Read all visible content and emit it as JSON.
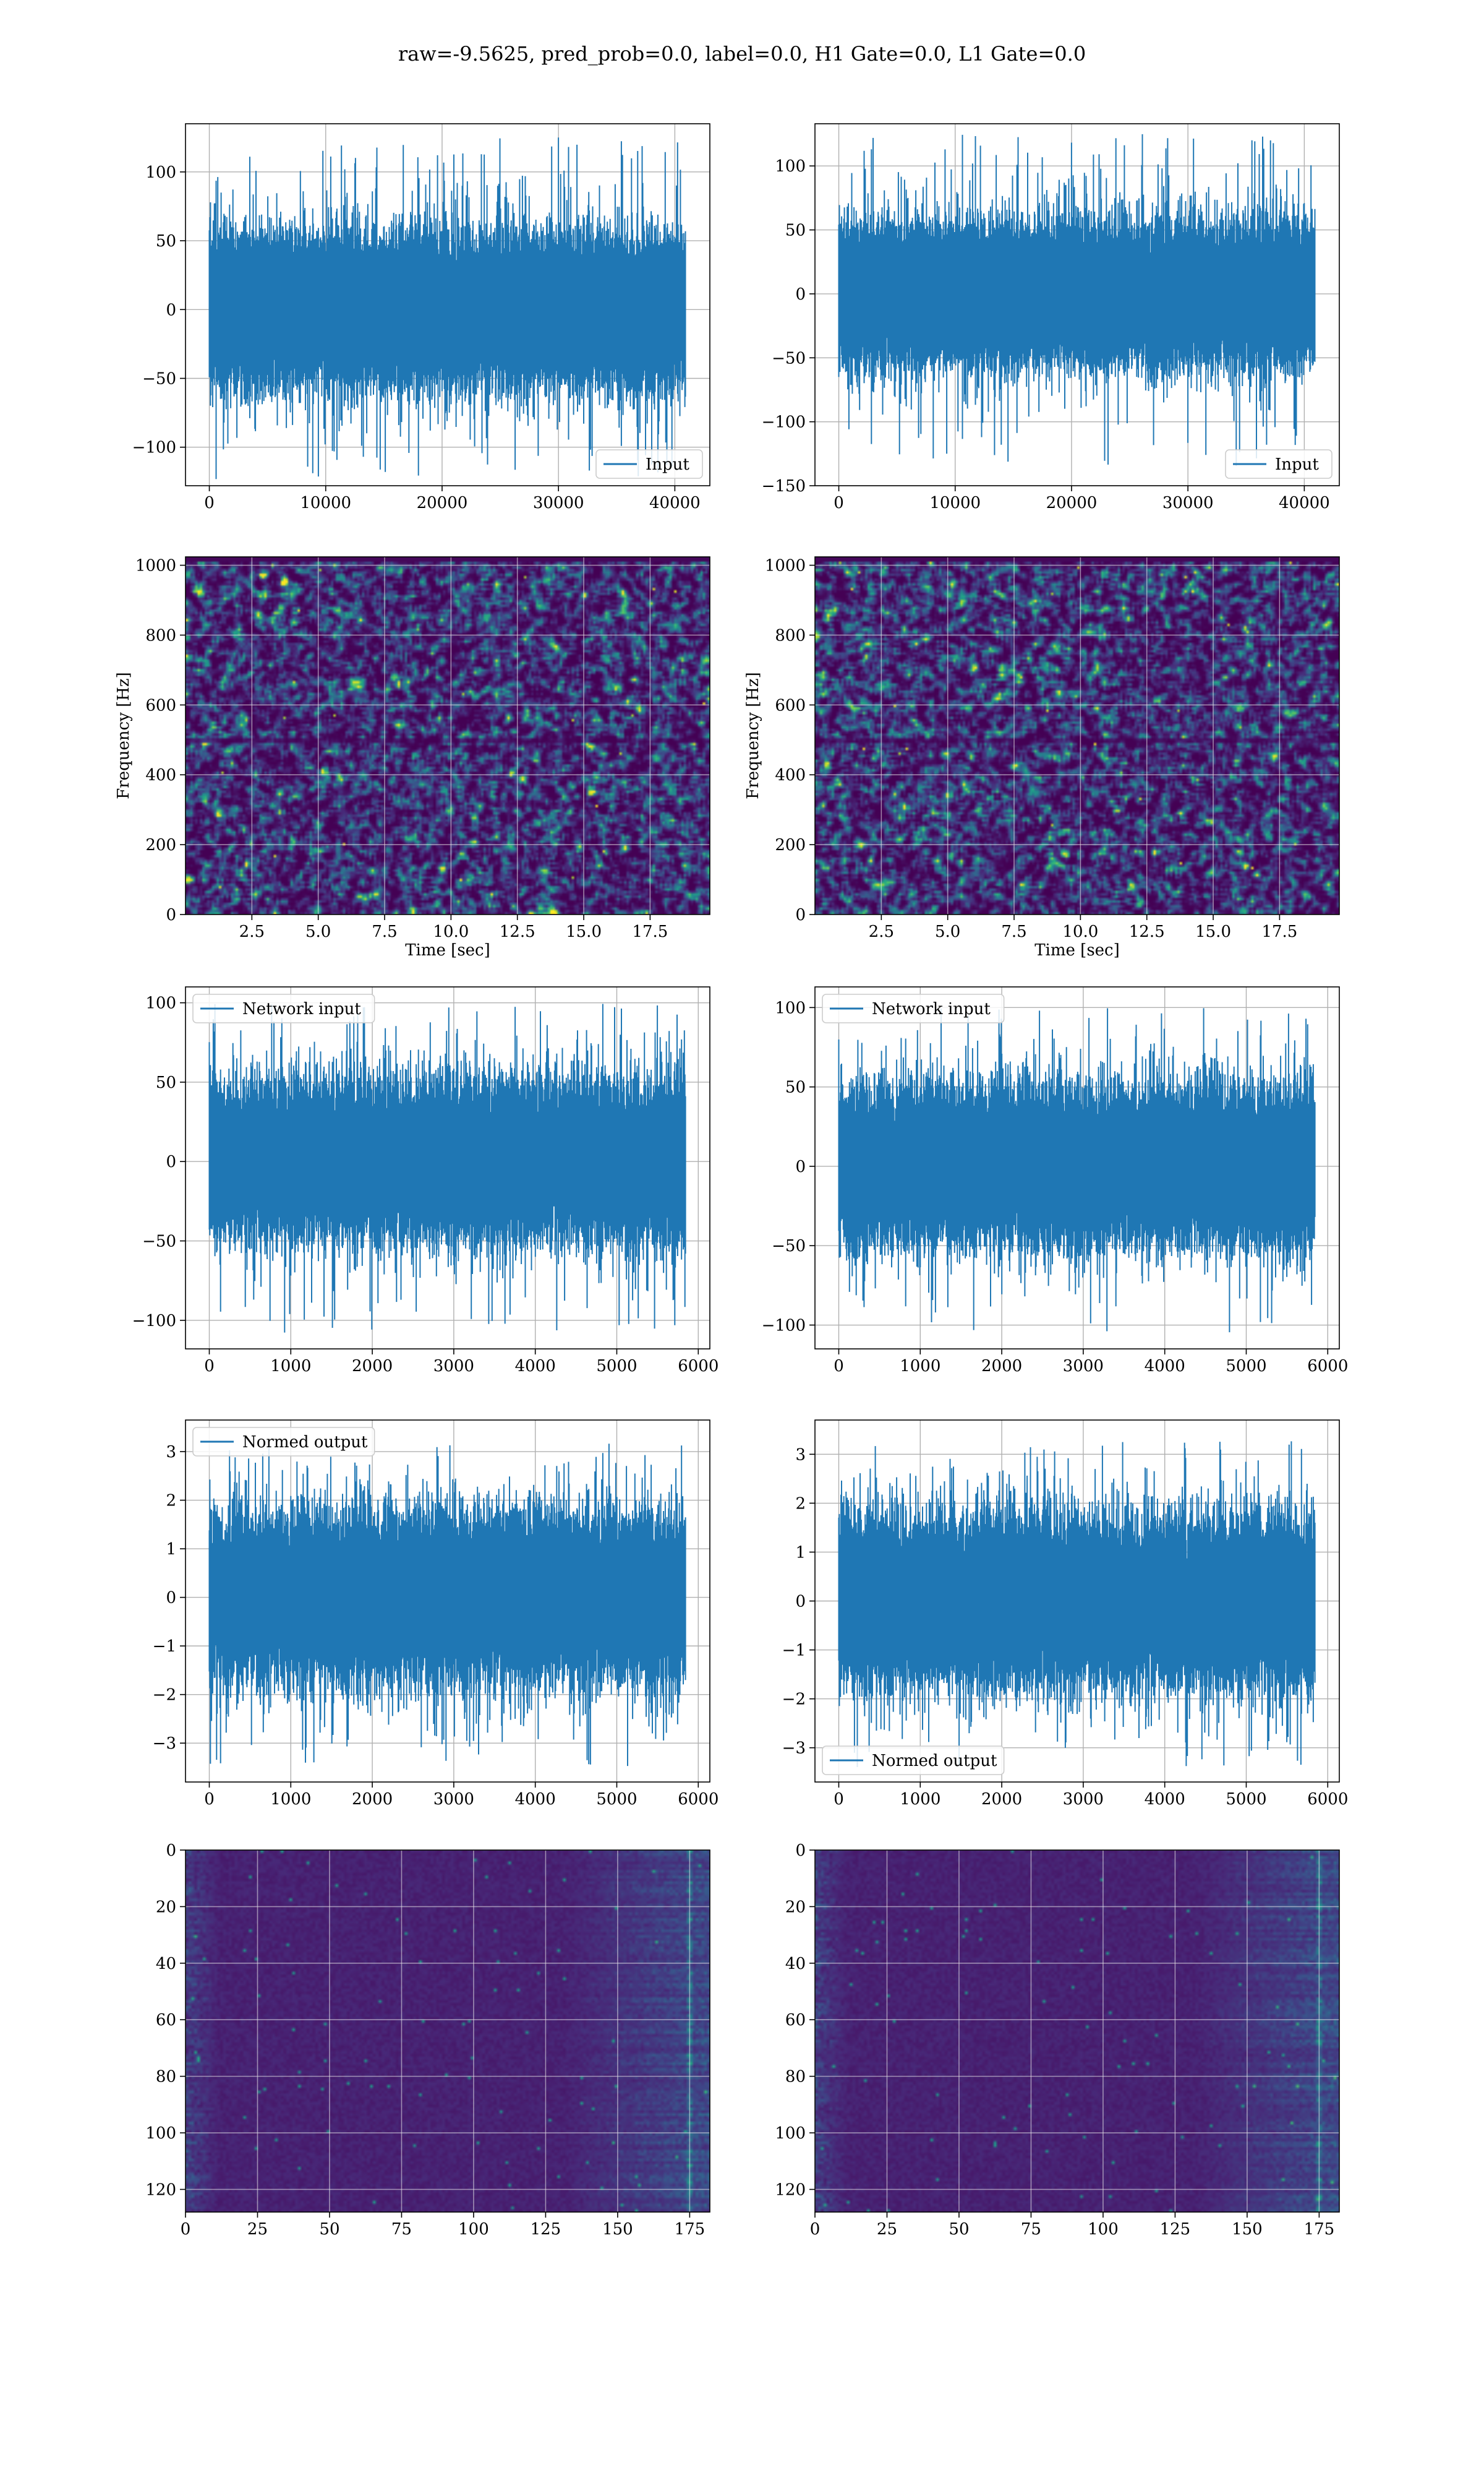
{
  "title": "raw=-9.5625, pred_prob=0.0, label=0.0, H1 Gate=0.0, L1 Gate=0.0",
  "colors": {
    "line": "#1f77b4",
    "viridis_low": "#440154",
    "viridis_high": "#fde725"
  },
  "chart_data": [
    {
      "id": "input-h1",
      "type": "line",
      "series": [
        {
          "name": "Input",
          "n_points": 40960,
          "noise_std": 25,
          "peak_range": [
            -125,
            125
          ]
        }
      ],
      "xlim": [
        -2048,
        43008
      ],
      "ylim": [
        -128,
        135
      ],
      "xticks": [
        0,
        10000,
        20000,
        30000,
        40000
      ],
      "xtick_labels": [
        "0",
        "10000",
        "20000",
        "30000",
        "40000"
      ],
      "yticks": [
        -100,
        -50,
        0,
        50,
        100
      ],
      "ytick_labels": [
        "−100",
        "−50",
        "0",
        "50",
        "100"
      ],
      "legend": {
        "loc": "lower right",
        "entries": [
          "Input"
        ]
      },
      "grid": true,
      "xlabel": "",
      "ylabel": ""
    },
    {
      "id": "input-l1",
      "type": "line",
      "series": [
        {
          "name": "Input",
          "n_points": 40960,
          "noise_std": 25,
          "peak_range": [
            -135,
            125
          ]
        }
      ],
      "xlim": [
        -2048,
        43008
      ],
      "ylim": [
        -150,
        133
      ],
      "xticks": [
        0,
        10000,
        20000,
        30000,
        40000
      ],
      "xtick_labels": [
        "0",
        "10000",
        "20000",
        "30000",
        "40000"
      ],
      "yticks": [
        -150,
        -100,
        -50,
        0,
        50,
        100
      ],
      "ytick_labels": [
        "−150",
        "−100",
        "−50",
        "0",
        "50",
        "100"
      ],
      "legend": {
        "loc": "lower right",
        "entries": [
          "Input"
        ]
      },
      "grid": true,
      "xlabel": "",
      "ylabel": ""
    },
    {
      "id": "spec-h1",
      "type": "heatmap",
      "colormap": "viridis",
      "xlim": [
        0,
        19.75
      ],
      "ylim": [
        0,
        1024
      ],
      "xticks": [
        2.5,
        5.0,
        7.5,
        10.0,
        12.5,
        15.0,
        17.5
      ],
      "xtick_labels": [
        "2.5",
        "5.0",
        "7.5",
        "10.0",
        "12.5",
        "15.0",
        "17.5"
      ],
      "yticks": [
        0,
        200,
        400,
        600,
        800,
        1000
      ],
      "ytick_labels": [
        "0",
        "200",
        "400",
        "600",
        "800",
        "1000"
      ],
      "xlabel": "Time [sec]",
      "ylabel": "Frequency [Hz]",
      "grid": true
    },
    {
      "id": "spec-l1",
      "type": "heatmap",
      "colormap": "viridis",
      "xlim": [
        0,
        19.75
      ],
      "ylim": [
        0,
        1024
      ],
      "xticks": [
        2.5,
        5.0,
        7.5,
        10.0,
        12.5,
        15.0,
        17.5
      ],
      "xtick_labels": [
        "2.5",
        "5.0",
        "7.5",
        "10.0",
        "12.5",
        "15.0",
        "17.5"
      ],
      "yticks": [
        0,
        200,
        400,
        600,
        800,
        1000
      ],
      "ytick_labels": [
        "0",
        "200",
        "400",
        "600",
        "800",
        "1000"
      ],
      "xlabel": "Time [sec]",
      "ylabel": "Frequency [Hz]",
      "grid": true
    },
    {
      "id": "netin-h1",
      "type": "line",
      "series": [
        {
          "name": "Network input",
          "n_points": 5850,
          "noise_std": 22,
          "peak_range": [
            -108,
            100
          ]
        }
      ],
      "xlim": [
        -292,
        6142
      ],
      "ylim": [
        -118,
        110
      ],
      "xticks": [
        0,
        1000,
        2000,
        3000,
        4000,
        5000,
        6000
      ],
      "xtick_labels": [
        "0",
        "1000",
        "2000",
        "3000",
        "4000",
        "5000",
        "6000"
      ],
      "yticks": [
        -100,
        -50,
        0,
        50,
        100
      ],
      "ytick_labels": [
        "−100",
        "−50",
        "0",
        "50",
        "100"
      ],
      "legend": {
        "loc": "upper left",
        "entries": [
          "Network input"
        ]
      },
      "grid": true,
      "xlabel": "",
      "ylabel": ""
    },
    {
      "id": "netin-l1",
      "type": "line",
      "series": [
        {
          "name": "Network input",
          "n_points": 5850,
          "noise_std": 22,
          "peak_range": [
            -105,
            102
          ]
        }
      ],
      "xlim": [
        -292,
        6142
      ],
      "ylim": [
        -115,
        113
      ],
      "xticks": [
        0,
        1000,
        2000,
        3000,
        4000,
        5000,
        6000
      ],
      "xtick_labels": [
        "0",
        "1000",
        "2000",
        "3000",
        "4000",
        "5000",
        "6000"
      ],
      "yticks": [
        -100,
        -50,
        0,
        50,
        100
      ],
      "ytick_labels": [
        "−100",
        "−50",
        "0",
        "50",
        "100"
      ],
      "legend": {
        "loc": "upper left",
        "entries": [
          "Network input"
        ]
      },
      "grid": true,
      "xlabel": "",
      "ylabel": ""
    },
    {
      "id": "normout-h1",
      "type": "line",
      "series": [
        {
          "name": "Normed output",
          "n_points": 5850,
          "noise_std": 0.75,
          "peak_range": [
            -3.5,
            3.2
          ]
        }
      ],
      "xlim": [
        -292,
        6142
      ],
      "ylim": [
        -3.8,
        3.65
      ],
      "xticks": [
        0,
        1000,
        2000,
        3000,
        4000,
        5000,
        6000
      ],
      "xtick_labels": [
        "0",
        "1000",
        "2000",
        "3000",
        "4000",
        "5000",
        "6000"
      ],
      "yticks": [
        -3,
        -2,
        -1,
        0,
        1,
        2,
        3
      ],
      "ytick_labels": [
        "−3",
        "−2",
        "−1",
        "0",
        "1",
        "2",
        "3"
      ],
      "legend": {
        "loc": "upper left",
        "entries": [
          "Normed output"
        ]
      },
      "grid": true,
      "xlabel": "",
      "ylabel": ""
    },
    {
      "id": "normout-l1",
      "type": "line",
      "series": [
        {
          "name": "Normed output",
          "n_points": 5850,
          "noise_std": 0.75,
          "peak_range": [
            -3.4,
            3.3
          ]
        }
      ],
      "xlim": [
        -292,
        6142
      ],
      "ylim": [
        -3.7,
        3.7
      ],
      "xticks": [
        0,
        1000,
        2000,
        3000,
        4000,
        5000,
        6000
      ],
      "xtick_labels": [
        "0",
        "1000",
        "2000",
        "3000",
        "4000",
        "5000",
        "6000"
      ],
      "yticks": [
        -3,
        -2,
        -1,
        0,
        1,
        2,
        3
      ],
      "ytick_labels": [
        "−3",
        "−2",
        "−1",
        "0",
        "1",
        "2",
        "3"
      ],
      "legend": {
        "loc": "lower left",
        "entries": [
          "Normed output"
        ]
      },
      "grid": true,
      "xlabel": "",
      "ylabel": ""
    },
    {
      "id": "feat-h1",
      "type": "heatmap",
      "colormap": "viridis",
      "rows": 128,
      "cols": 182,
      "xlim": [
        0,
        182
      ],
      "ylim": [
        128,
        0
      ],
      "xticks": [
        0,
        25,
        50,
        75,
        100,
        125,
        150,
        175
      ],
      "xtick_labels": [
        "0",
        "25",
        "50",
        "75",
        "100",
        "125",
        "150",
        "175"
      ],
      "yticks": [
        0,
        20,
        40,
        60,
        80,
        100,
        120
      ],
      "ytick_labels": [
        "0",
        "20",
        "40",
        "60",
        "80",
        "100",
        "120"
      ],
      "grid": true,
      "xlabel": "",
      "ylabel": ""
    },
    {
      "id": "feat-l1",
      "type": "heatmap",
      "colormap": "viridis",
      "rows": 128,
      "cols": 182,
      "xlim": [
        0,
        182
      ],
      "ylim": [
        128,
        0
      ],
      "xticks": [
        0,
        25,
        50,
        75,
        100,
        125,
        150,
        175
      ],
      "xtick_labels": [
        "0",
        "25",
        "50",
        "75",
        "100",
        "125",
        "150",
        "175"
      ],
      "yticks": [
        0,
        20,
        40,
        60,
        80,
        100,
        120
      ],
      "ytick_labels": [
        "0",
        "20",
        "40",
        "60",
        "80",
        "100",
        "120"
      ],
      "grid": true,
      "xlabel": "",
      "ylabel": ""
    }
  ]
}
